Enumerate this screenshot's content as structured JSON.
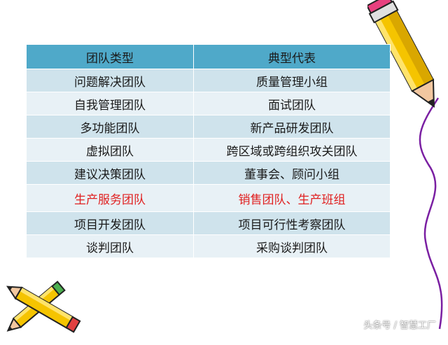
{
  "table": {
    "headers": [
      "团队类型",
      "典型代表"
    ],
    "rows": [
      [
        "问题解决团队",
        "质量管理小组"
      ],
      [
        "自我管理团队",
        "面试团队"
      ],
      [
        "多功能团队",
        "新产品研发团队"
      ],
      [
        "虚拟团队",
        "跨区域或跨组织攻关团队"
      ],
      [
        "建议决策团队",
        "董事会、顾问小组"
      ],
      [
        "生产服务团队",
        "销售团队、生产班组"
      ],
      [
        "项目开发团队",
        "项目可行性考察团队"
      ],
      [
        "谈判团队",
        "采购谈判团队"
      ]
    ],
    "highlight_row_color": "#e02020",
    "header_color": "#4fa9c9"
  },
  "watermark": "头条号 / 智慧工厂",
  "decorations": [
    "pencil-icon",
    "pencil-icon",
    "pencil-icon",
    "purple-curve"
  ]
}
